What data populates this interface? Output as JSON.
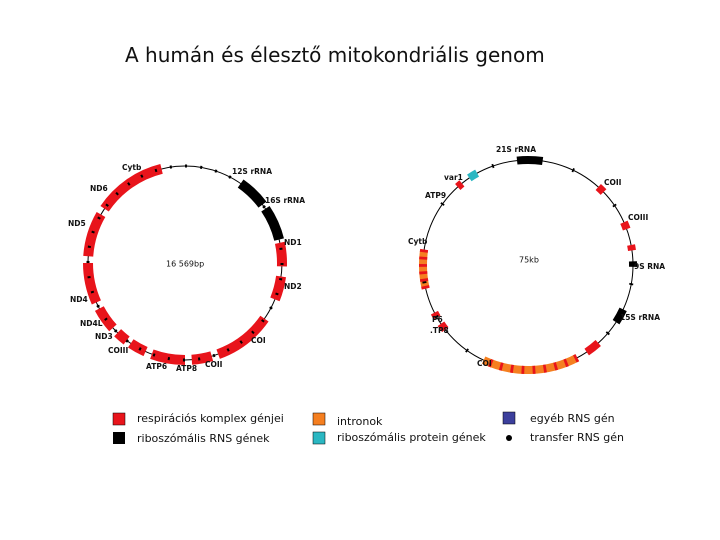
{
  "title": "A humán és élesztő mitokondriális genom",
  "human": {
    "size_label": "16 569bp",
    "genes": [
      "Cytb",
      "12S rRNA",
      "ND6",
      "16S rRNA",
      "ND5",
      "ND1",
      "ND2",
      "ND4",
      "ND4L",
      "ND3",
      "COIII",
      "COI",
      "ATP6",
      "ATP8",
      "COII"
    ]
  },
  "yeast": {
    "size_label": "75kb",
    "genes": [
      "21S rRNA",
      "var1",
      "COII",
      "ATP9",
      "COIII",
      "Cytb",
      "9S RNA",
      "15S rRNA",
      "P6",
      ".TP8",
      "COI"
    ]
  },
  "legend": [
    {
      "label": "respirációs komplex génjei"
    },
    {
      "label": "riboszómális RNS gének"
    },
    {
      "label": "intronok"
    },
    {
      "label": "riboszómális protein gének"
    },
    {
      "label": "egyéb RNS gén"
    },
    {
      "label": "transfer RNS gén"
    }
  ]
}
